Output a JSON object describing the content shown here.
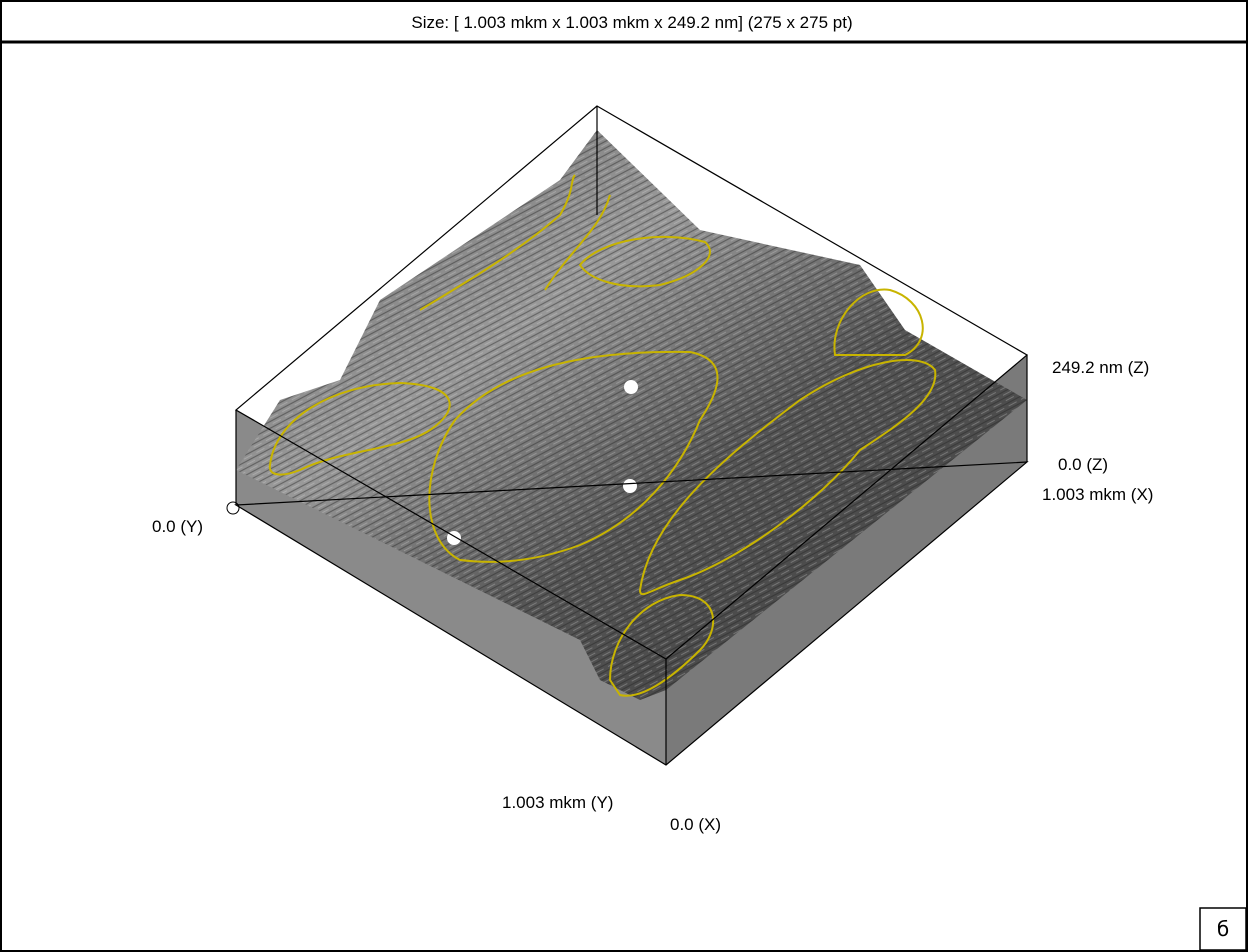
{
  "header": {
    "title": "Size: [ 1.003 mkm x  1.003 mkm x  249.2 nm] (275 x 275 pt)"
  },
  "axis_labels": {
    "z_max": "249.2 nm (Z)",
    "z_min": "0.0 (Z)",
    "x_max": "1.003 mkm (X)",
    "y_min": "0.0 (Y)",
    "y_max": "1.003 mkm (Y)",
    "x_min": "0.0 (X)"
  },
  "panel_label": "б"
}
